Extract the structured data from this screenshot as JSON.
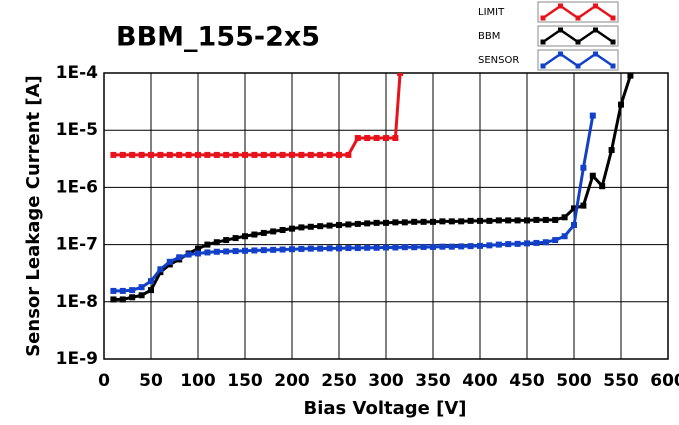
{
  "chart_data": {
    "type": "line",
    "title": "BBM_155-2x5",
    "xlabel": "Bias Voltage [V]",
    "ylabel": "Sensor Leakage Current [A]",
    "xlim": [
      0,
      600
    ],
    "xticks": [
      0,
      50,
      100,
      150,
      200,
      250,
      300,
      350,
      400,
      450,
      500,
      550,
      600
    ],
    "ylim": [
      1e-09,
      0.0001
    ],
    "log_y": true,
    "grid": true,
    "yticks": [
      {
        "value": 1e-09,
        "label": "1E-9"
      },
      {
        "value": 1e-08,
        "label": "1E-8"
      },
      {
        "value": 1e-07,
        "label": "1E-7"
      },
      {
        "value": 1e-06,
        "label": "1E-6"
      },
      {
        "value": 1e-05,
        "label": "1E-5"
      },
      {
        "value": 0.0001,
        "label": "1E-4"
      }
    ],
    "legend": "top-right",
    "series": [
      {
        "name": "LIMIT",
        "color": "#e8121a",
        "x": [
          10,
          20,
          30,
          40,
          50,
          60,
          70,
          80,
          90,
          100,
          110,
          120,
          130,
          140,
          150,
          160,
          170,
          180,
          190,
          200,
          210,
          220,
          230,
          240,
          250,
          260,
          270,
          280,
          290,
          300,
          310,
          315
        ],
        "values": [
          3.7e-06,
          3.7e-06,
          3.7e-06,
          3.7e-06,
          3.7e-06,
          3.7e-06,
          3.7e-06,
          3.7e-06,
          3.7e-06,
          3.7e-06,
          3.7e-06,
          3.7e-06,
          3.7e-06,
          3.7e-06,
          3.7e-06,
          3.7e-06,
          3.7e-06,
          3.7e-06,
          3.7e-06,
          3.7e-06,
          3.7e-06,
          3.7e-06,
          3.7e-06,
          3.7e-06,
          3.7e-06,
          3.7e-06,
          7.3e-06,
          7.3e-06,
          7.3e-06,
          7.3e-06,
          7.3e-06,
          0.0001
        ]
      },
      {
        "name": "BBM",
        "color": "#000000",
        "x": [
          10,
          20,
          30,
          40,
          50,
          60,
          70,
          80,
          90,
          100,
          110,
          120,
          130,
          140,
          150,
          160,
          170,
          180,
          190,
          200,
          210,
          220,
          230,
          240,
          250,
          260,
          270,
          280,
          290,
          300,
          310,
          320,
          330,
          340,
          350,
          360,
          370,
          380,
          390,
          400,
          410,
          420,
          430,
          440,
          450,
          460,
          470,
          480,
          490,
          500,
          510,
          520,
          530,
          540,
          550,
          560
        ],
        "values": [
          1.1e-08,
          1.1e-08,
          1.2e-08,
          1.3e-08,
          1.6e-08,
          3.3e-08,
          4.5e-08,
          5.5e-08,
          7e-08,
          8.5e-08,
          1e-07,
          1.1e-07,
          1.2e-07,
          1.3e-07,
          1.4e-07,
          1.5e-07,
          1.6e-07,
          1.7e-07,
          1.8e-07,
          1.9e-07,
          2e-07,
          2.05e-07,
          2.1e-07,
          2.15e-07,
          2.2e-07,
          2.25e-07,
          2.3e-07,
          2.35e-07,
          2.4e-07,
          2.4e-07,
          2.45e-07,
          2.45e-07,
          2.5e-07,
          2.5e-07,
          2.5e-07,
          2.55e-07,
          2.55e-07,
          2.55e-07,
          2.6e-07,
          2.6e-07,
          2.6e-07,
          2.65e-07,
          2.65e-07,
          2.65e-07,
          2.65e-07,
          2.7e-07,
          2.7e-07,
          2.7e-07,
          3e-07,
          4.3e-07,
          4.8e-07,
          1.6e-06,
          1.05e-06,
          4.5e-06,
          2.8e-05,
          9e-05
        ]
      },
      {
        "name": "SENSOR",
        "color": "#1240c8",
        "x": [
          10,
          20,
          30,
          40,
          50,
          60,
          70,
          80,
          90,
          100,
          110,
          120,
          130,
          140,
          150,
          160,
          170,
          180,
          190,
          200,
          210,
          220,
          230,
          240,
          250,
          260,
          270,
          280,
          290,
          300,
          310,
          320,
          330,
          340,
          350,
          360,
          370,
          380,
          390,
          400,
          410,
          420,
          430,
          440,
          450,
          460,
          470,
          480,
          490,
          500,
          510,
          520
        ],
        "values": [
          1.55e-08,
          1.55e-08,
          1.6e-08,
          1.8e-08,
          2.3e-08,
          3.7e-08,
          5e-08,
          6e-08,
          6.7e-08,
          7e-08,
          7.3e-08,
          7.5e-08,
          7.6e-08,
          7.7e-08,
          7.8e-08,
          7.9e-08,
          8e-08,
          8.1e-08,
          8.2e-08,
          8.3e-08,
          8.4e-08,
          8.5e-08,
          8.5e-08,
          8.6e-08,
          8.6e-08,
          8.7e-08,
          8.7e-08,
          8.8e-08,
          8.8e-08,
          8.9e-08,
          8.9e-08,
          9e-08,
          9e-08,
          9.1e-08,
          9.1e-08,
          9.2e-08,
          9.2e-08,
          9.3e-08,
          9.4e-08,
          9.5e-08,
          9.7e-08,
          1e-07,
          1.02e-07,
          1.03e-07,
          1.05e-07,
          1.07e-07,
          1.1e-07,
          1.2e-07,
          1.4e-07,
          2.2e-07,
          2.2e-06,
          1.8e-05
        ]
      }
    ]
  }
}
